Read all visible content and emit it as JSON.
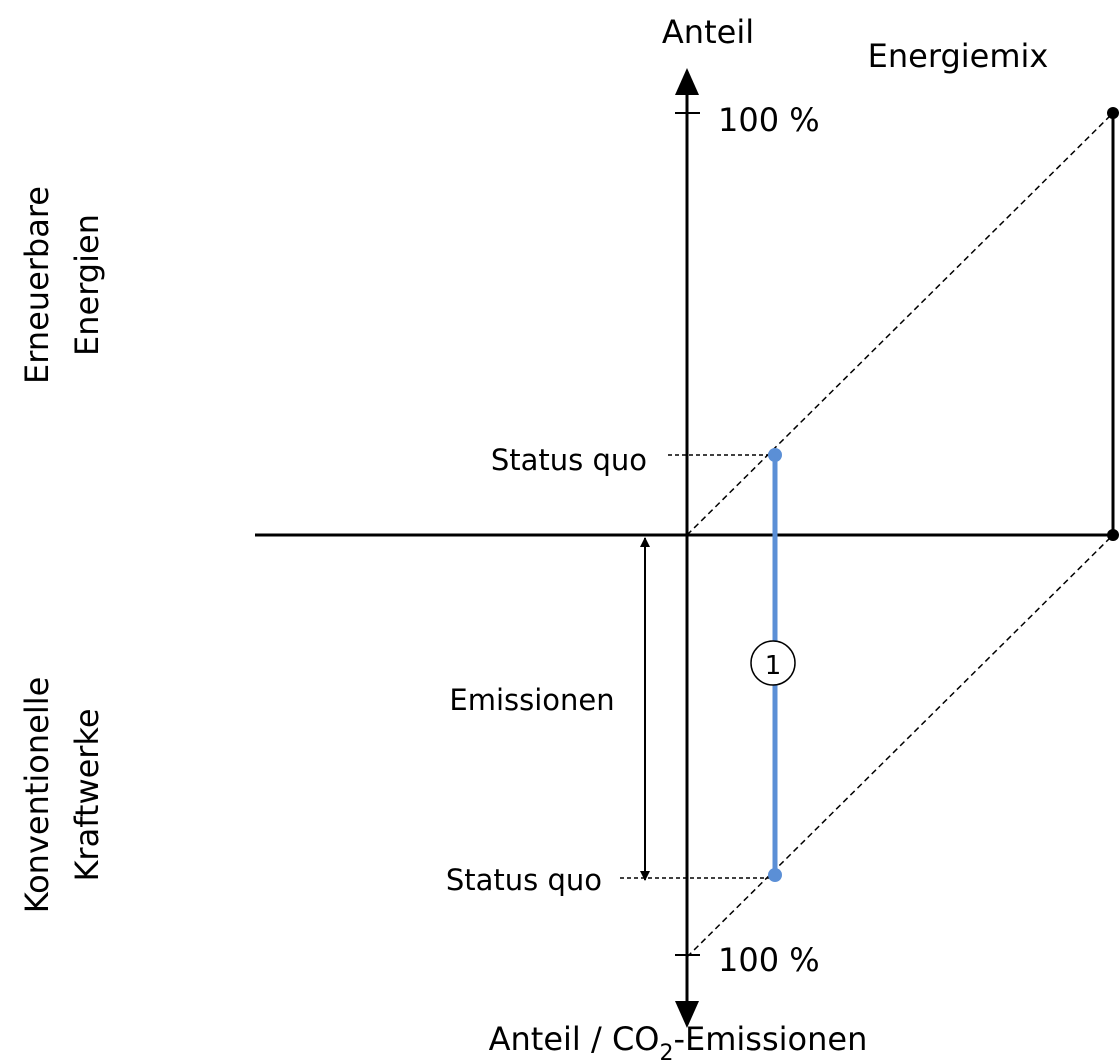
{
  "y_axis_label": "Anteil",
  "top_right_label": "Energiemix",
  "top_tick_label": "100 %",
  "bottom_tick_label": "100 %",
  "upper_side_label": [
    "Erneuerbare",
    "Energien"
  ],
  "lower_side_label": [
    "Konventionelle",
    "Kraftwerke"
  ],
  "upper_status_label": "Status quo",
  "lower_status_label": "Status quo",
  "emissions_label": "Emissionen",
  "marker_label": "1",
  "x_axis_label": {
    "main": "Anteil / CO",
    "subscript": "2",
    "suffix": "-Emissionen"
  }
}
